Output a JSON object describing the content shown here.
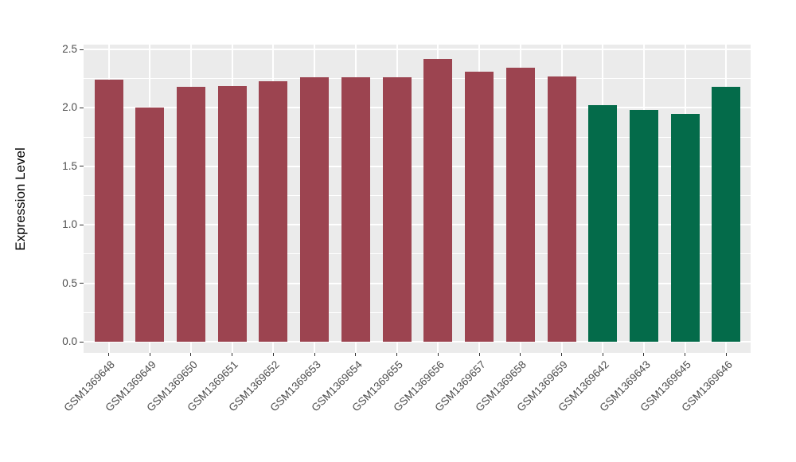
{
  "chart_data": {
    "type": "bar",
    "title": "",
    "xlabel": "",
    "ylabel": "Expression Level",
    "categories": [
      "GSM1369648",
      "GSM1369649",
      "GSM1369650",
      "GSM1369651",
      "GSM1369652",
      "GSM1369653",
      "GSM1369654",
      "GSM1369655",
      "GSM1369656",
      "GSM1369657",
      "GSM1369658",
      "GSM1369659",
      "GSM1369642",
      "GSM1369643",
      "GSM1369645",
      "GSM1369646"
    ],
    "values": [
      2.24,
      2.0,
      2.18,
      2.19,
      2.23,
      2.26,
      2.26,
      2.26,
      2.42,
      2.31,
      2.34,
      2.27,
      2.02,
      1.98,
      1.95,
      2.18
    ],
    "bar_colors": [
      "#9C4450",
      "#9C4450",
      "#9C4450",
      "#9C4450",
      "#9C4450",
      "#9C4450",
      "#9C4450",
      "#9C4450",
      "#9C4450",
      "#9C4450",
      "#9C4450",
      "#9C4450",
      "#046B4A",
      "#046B4A",
      "#046B4A",
      "#046B4A"
    ],
    "group_colors": {
      "maroon_group": "#9C4450",
      "green_group": "#046B4A"
    },
    "ytick_values": [
      0.0,
      0.5,
      1.0,
      1.5,
      2.0,
      2.5
    ],
    "ytick_labels": [
      "0.0",
      "0.5",
      "1.0",
      "1.5",
      "2.0",
      "2.5"
    ],
    "ylim": [
      -0.1,
      2.54
    ],
    "grid": true,
    "legend_position": "none",
    "panel_bg": "#EBEBEB",
    "grid_color": "#FFFFFF",
    "axis_text_color": "#4D4D4D",
    "x_label_rotation_deg": 45
  }
}
